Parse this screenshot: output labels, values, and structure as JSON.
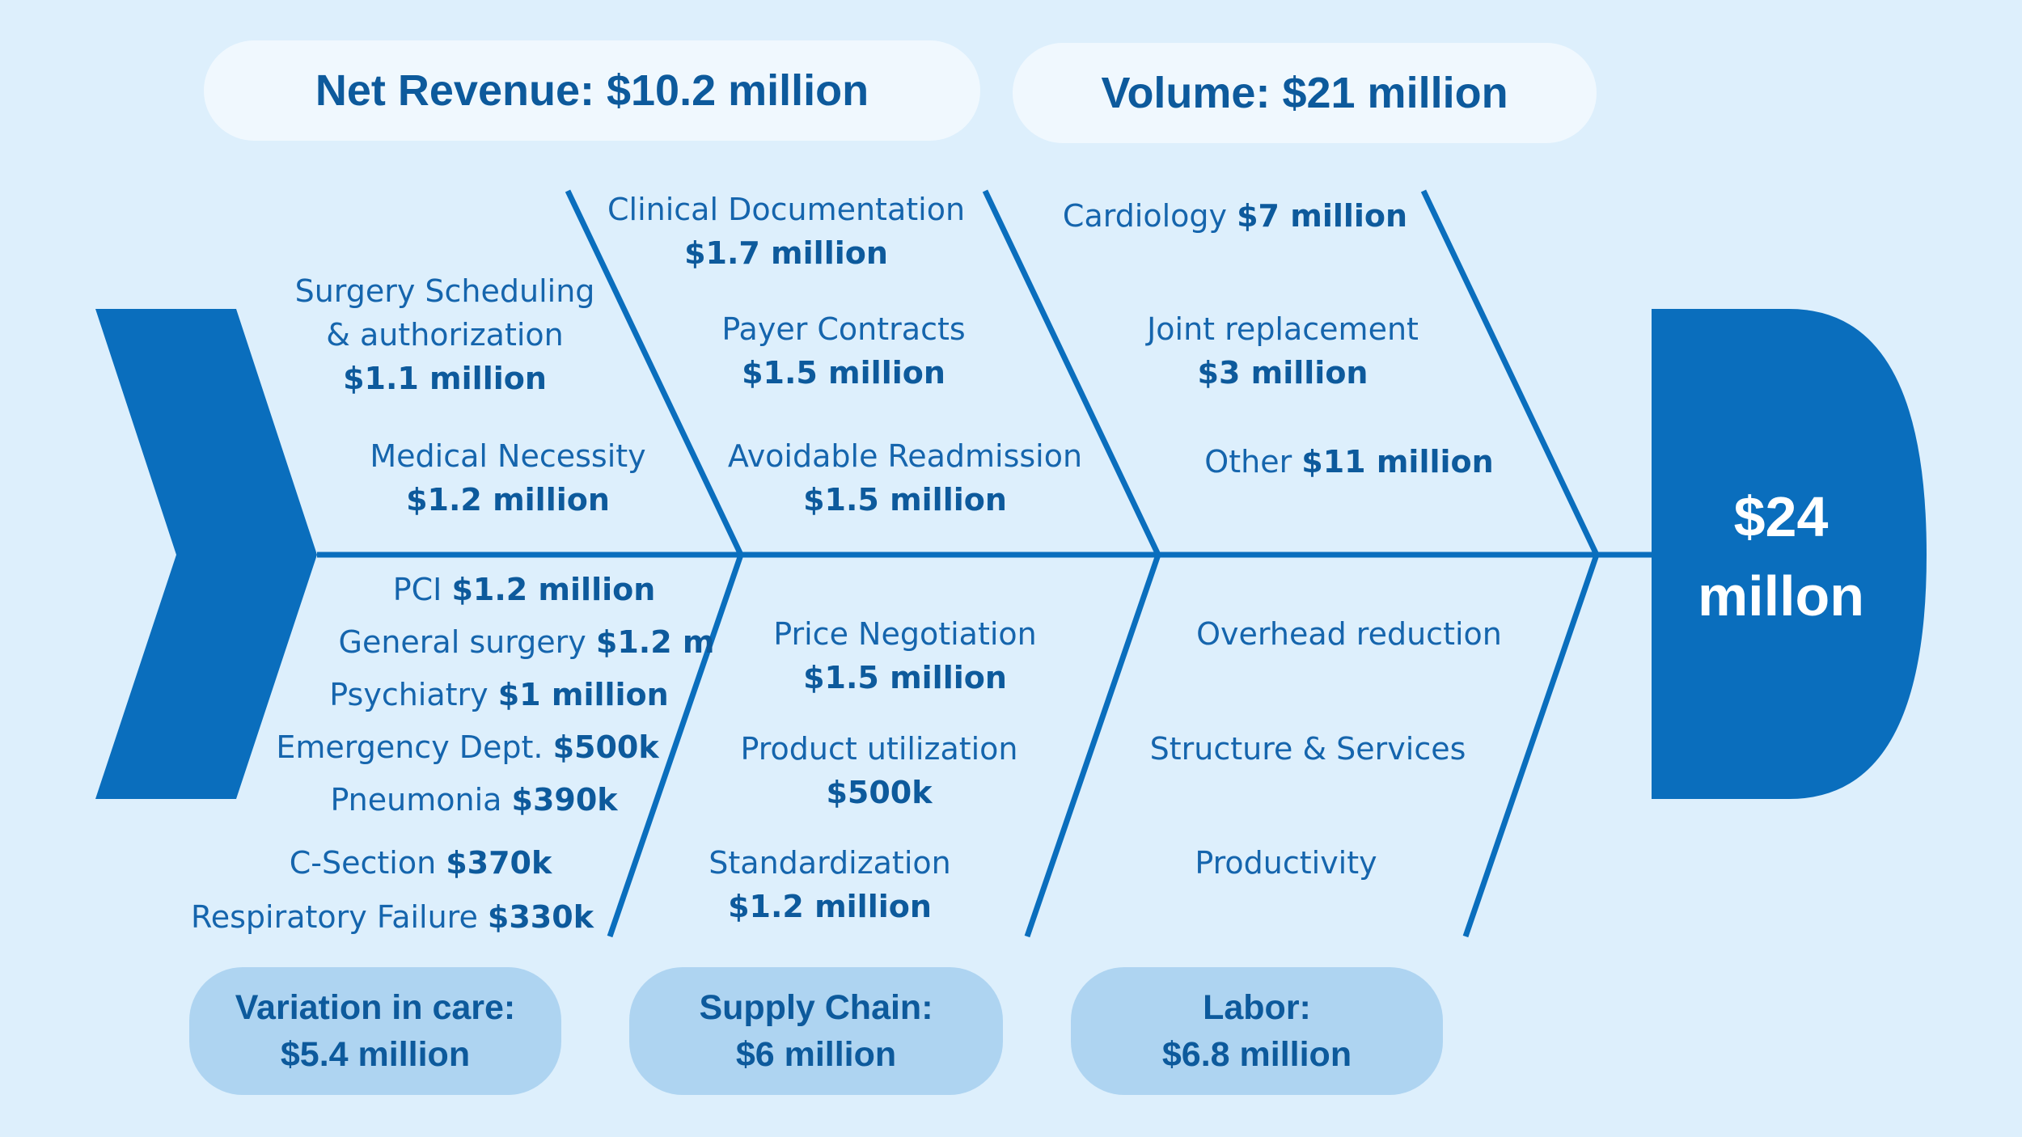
{
  "categories_top": {
    "net_revenue": "Net Revenue: $10.2 million",
    "volume": "Volume: $21 million"
  },
  "categories_bottom": {
    "variation": {
      "line1": "Variation in care:",
      "line2": "$5.4 million"
    },
    "supply": {
      "line1": "Supply Chain:",
      "line2": "$6 million"
    },
    "labor": {
      "line1": "Labor:",
      "line2": "$6.8 million"
    }
  },
  "head": {
    "line1": "$24",
    "line2": "millon"
  },
  "net_revenue_causes": [
    {
      "line1": "Surgery Scheduling",
      "line2": "& authorization",
      "amount": "$1.1 million"
    },
    {
      "line1": "Medical Necessity",
      "amount": "$1.2 million"
    },
    {
      "line1": "Clinical Documentation",
      "amount": "$1.7 million"
    },
    {
      "line1": "Payer Contracts",
      "amount": "$1.5 million"
    },
    {
      "line1": "Avoidable Readmission",
      "amount": "$1.5 million"
    }
  ],
  "volume_causes": [
    {
      "label": "Cardiology ",
      "amount": "$7 million"
    },
    {
      "line1": "Joint replacement",
      "amount": "$3 million"
    },
    {
      "label": "Other ",
      "amount": "$11 million"
    }
  ],
  "variation_causes": [
    {
      "label": "PCI ",
      "amount": "$1.2 million"
    },
    {
      "label": "General  surgery ",
      "amount": "$1.2 m"
    },
    {
      "label": "Psychiatry ",
      "amount": "$1 million"
    },
    {
      "label": "Emergency  Dept. ",
      "amount": "$500k"
    },
    {
      "label": "Pneumonia ",
      "amount": "$390k"
    },
    {
      "label": "C-Section ",
      "amount": "$370k"
    },
    {
      "label": "Respiratory  Failure ",
      "amount": "$330k"
    }
  ],
  "supply_causes": [
    {
      "line1": "Price Negotiation",
      "amount": "$1.5 million"
    },
    {
      "line1": "Product utilization",
      "amount": "$500k"
    },
    {
      "line1": "Standardization",
      "amount": "$1.2 million"
    }
  ],
  "labor_causes": [
    {
      "label": "Overhead reduction"
    },
    {
      "label": "Structure & Services"
    },
    {
      "label": "Productivity"
    }
  ],
  "colors": {
    "background": "#ddeffc",
    "primary": "#0a6ebd",
    "text": "#1565ad",
    "amount": "#0d5a9c",
    "pill_top": "#f0f8fe",
    "pill_bottom": "#aed4f1"
  }
}
